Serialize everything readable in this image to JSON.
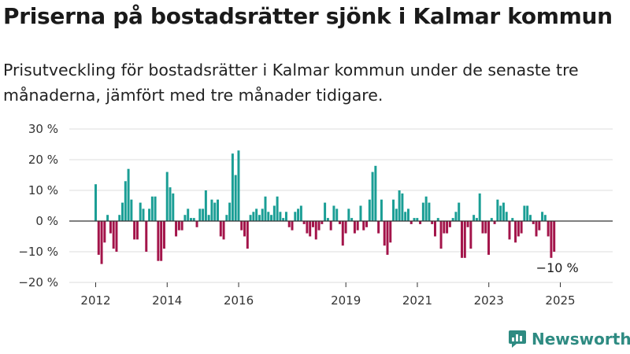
{
  "title": "Priserna på bostadsrätter sjönk i Kalmar kommun",
  "subtitle": "Prisutveckling för bostadsrätter i Kalmar kommun under de senaste tre månaderna, jämfört med tre månader tidigare.",
  "brand": {
    "name": "Newsworthy",
    "color": "#2e8b82"
  },
  "colors": {
    "positive": "#1a9e95",
    "negative": "#a3144a",
    "gridline": "#dddddd",
    "zeroline": "#333333"
  },
  "chart_data": {
    "type": "bar",
    "ylim": [
      -20,
      30
    ],
    "y_ticks": [
      -20,
      -10,
      0,
      10,
      20,
      30
    ],
    "y_tick_labels": [
      "−20 %",
      "−10 %",
      "0 %",
      "10 %",
      "20 %",
      "30 %"
    ],
    "x_ticks": [
      2012,
      2014,
      2016,
      2019,
      2021,
      2023,
      2025
    ],
    "x_tick_labels": [
      "2012",
      "2014",
      "2016",
      "2019",
      "2021",
      "2023",
      "2025"
    ],
    "x_start": 2012.0,
    "x_step": 0.0833,
    "values": [
      12,
      -11,
      -14,
      -7,
      2,
      -4,
      -9,
      -10,
      2,
      6,
      13,
      17,
      7,
      -6,
      -6,
      6,
      4,
      -10,
      4,
      8,
      8,
      -13,
      -13,
      -9,
      16,
      11,
      9,
      -5,
      -3,
      -3,
      2,
      4,
      1,
      1,
      -2,
      4,
      4,
      10,
      2,
      7,
      6,
      7,
      -5,
      -6,
      2,
      6,
      22,
      15,
      23,
      -3,
      -5,
      -9,
      2,
      3,
      4,
      2,
      4,
      8,
      3,
      2,
      5,
      8,
      3,
      1,
      3,
      -2,
      -3,
      3,
      4,
      5,
      -1,
      -4,
      -5,
      -2,
      -6,
      -3,
      -1,
      6,
      1,
      -3,
      5,
      4,
      -1,
      -8,
      -4,
      4,
      1,
      -4,
      -3,
      5,
      -3,
      -2,
      7,
      16,
      18,
      -4,
      7,
      -8,
      -11,
      -7,
      7,
      4,
      10,
      9,
      3,
      4,
      -1,
      1,
      1,
      -1,
      6,
      8,
      6,
      -1,
      -5,
      1,
      -9,
      -4,
      -4,
      -2,
      1,
      3,
      6,
      -12,
      -12,
      -2,
      -9,
      2,
      1,
      9,
      -4,
      -4,
      -11,
      1,
      -1,
      7,
      5,
      6,
      3,
      -6,
      1,
      -7,
      -5,
      -4,
      5,
      5,
      2,
      -1,
      -5,
      -3,
      3,
      2,
      -5,
      -12,
      -10
    ],
    "annotation": "−10 %"
  }
}
